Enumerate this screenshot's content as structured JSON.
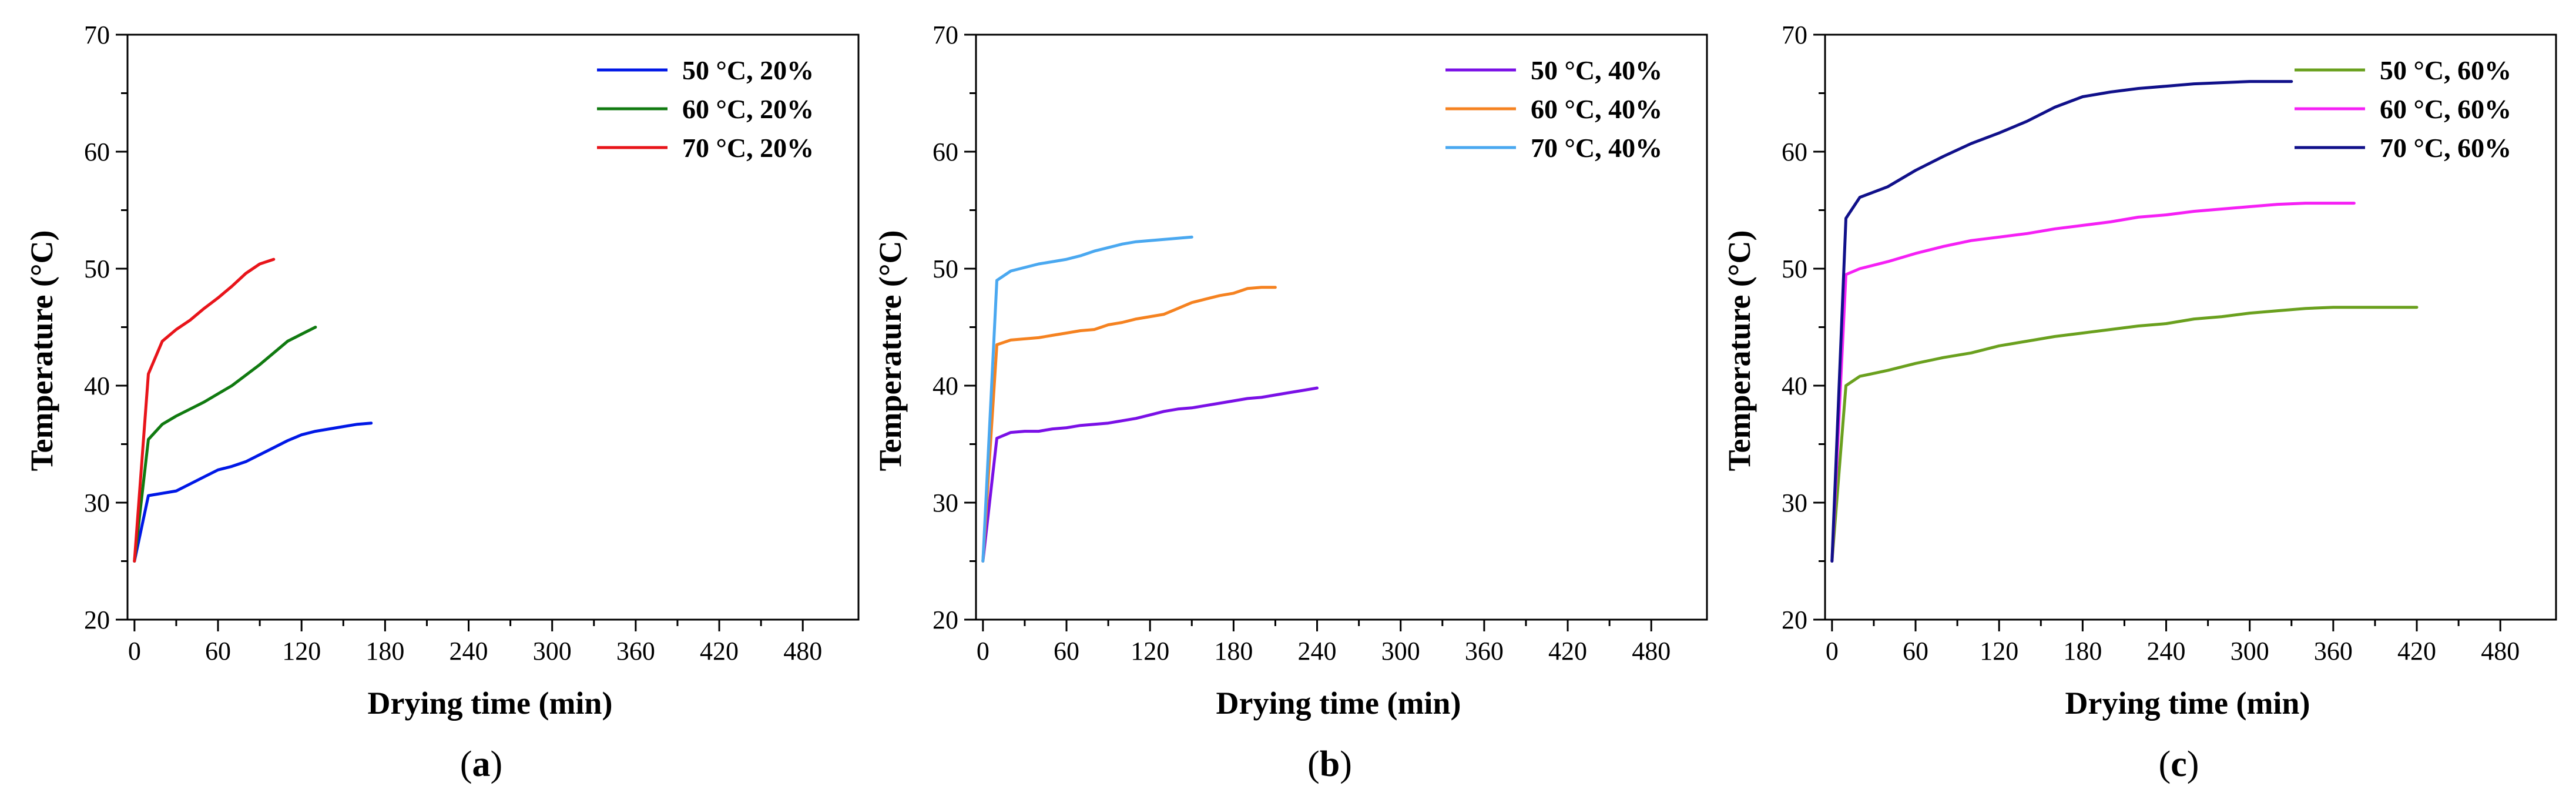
{
  "chart_data": [
    {
      "type": "line",
      "panel_label": "a",
      "xlabel": "Drying time (min)",
      "ylabel": "Temperature (°C)",
      "xlim": [
        -5,
        520
      ],
      "ylim": [
        20,
        70
      ],
      "xticks": [
        0,
        60,
        120,
        180,
        240,
        300,
        360,
        420,
        480
      ],
      "yticks": [
        20,
        30,
        40,
        50,
        60,
        70
      ],
      "legend_position": "top-right",
      "series": [
        {
          "name": "50 °C, 20%",
          "color": "#0018e6",
          "x": [
            0,
            10,
            20,
            30,
            40,
            50,
            60,
            70,
            80,
            90,
            100,
            110,
            120,
            130,
            140,
            150,
            160,
            170
          ],
          "y": [
            25.0,
            30.6,
            30.8,
            31.0,
            31.6,
            32.2,
            32.8,
            33.1,
            33.5,
            34.1,
            34.7,
            35.3,
            35.8,
            36.1,
            36.3,
            36.5,
            36.7,
            36.8
          ]
        },
        {
          "name": "60 °C, 20%",
          "color": "#107a10",
          "x": [
            0,
            10,
            20,
            30,
            40,
            50,
            60,
            70,
            80,
            90,
            100,
            110,
            120,
            130
          ],
          "y": [
            25.0,
            35.4,
            36.7,
            37.4,
            38.0,
            38.6,
            39.3,
            40.0,
            40.9,
            41.8,
            42.8,
            43.8,
            44.4,
            45.0
          ]
        },
        {
          "name": "70 °C, 20%",
          "color": "#e8141a",
          "x": [
            0,
            10,
            20,
            30,
            40,
            50,
            60,
            70,
            80,
            90,
            100
          ],
          "y": [
            25.0,
            41.0,
            43.8,
            44.8,
            45.6,
            46.6,
            47.5,
            48.5,
            49.6,
            50.4,
            50.8
          ]
        }
      ]
    },
    {
      "type": "line",
      "panel_label": "b",
      "xlabel": "Drying time (min)",
      "ylabel": "Temperature (°C)",
      "xlim": [
        -5,
        520
      ],
      "ylim": [
        20,
        70
      ],
      "xticks": [
        0,
        60,
        120,
        180,
        240,
        300,
        360,
        420,
        480
      ],
      "yticks": [
        20,
        30,
        40,
        50,
        60,
        70
      ],
      "legend_position": "top-right",
      "series": [
        {
          "name": "50 °C, 40%",
          "color": "#7a10e6",
          "x": [
            0,
            10,
            20,
            30,
            40,
            50,
            60,
            70,
            80,
            90,
            100,
            110,
            120,
            130,
            140,
            150,
            160,
            170,
            180,
            190,
            200,
            210,
            220,
            230,
            240
          ],
          "y": [
            25.0,
            35.5,
            36.0,
            36.1,
            36.1,
            36.3,
            36.4,
            36.6,
            36.7,
            36.8,
            37.0,
            37.2,
            37.5,
            37.8,
            38.0,
            38.1,
            38.3,
            38.5,
            38.7,
            38.9,
            39.0,
            39.2,
            39.4,
            39.6,
            39.8
          ]
        },
        {
          "name": "60 °C, 40%",
          "color": "#f58220",
          "x": [
            0,
            10,
            20,
            30,
            40,
            50,
            60,
            70,
            80,
            90,
            100,
            110,
            120,
            130,
            140,
            150,
            160,
            170,
            180,
            190,
            200,
            210
          ],
          "y": [
            25.0,
            43.5,
            43.9,
            44.0,
            44.1,
            44.3,
            44.5,
            44.7,
            44.8,
            45.2,
            45.4,
            45.7,
            45.9,
            46.1,
            46.6,
            47.1,
            47.4,
            47.7,
            47.9,
            48.3,
            48.4,
            48.4
          ]
        },
        {
          "name": "70 °C, 40%",
          "color": "#4aa8f0",
          "x": [
            0,
            10,
            20,
            30,
            40,
            50,
            60,
            70,
            80,
            90,
            100,
            110,
            120,
            130,
            140,
            150
          ],
          "y": [
            25.0,
            49.0,
            49.8,
            50.1,
            50.4,
            50.6,
            50.8,
            51.1,
            51.5,
            51.8,
            52.1,
            52.3,
            52.4,
            52.5,
            52.6,
            52.7
          ]
        }
      ]
    },
    {
      "type": "line",
      "panel_label": "c",
      "xlabel": "Drying time (min)",
      "ylabel": "Temperature (°C)",
      "xlim": [
        -5,
        520
      ],
      "ylim": [
        20,
        70
      ],
      "xticks": [
        0,
        60,
        120,
        180,
        240,
        300,
        360,
        420,
        480
      ],
      "yticks": [
        20,
        30,
        40,
        50,
        60,
        70
      ],
      "legend_position": "top-right",
      "series": [
        {
          "name": "50 °C, 60%",
          "color": "#6aa01e",
          "x": [
            0,
            10,
            20,
            40,
            60,
            80,
            100,
            120,
            140,
            160,
            180,
            200,
            220,
            240,
            260,
            280,
            300,
            320,
            340,
            360,
            380,
            400,
            420
          ],
          "y": [
            25.0,
            40.0,
            40.8,
            41.3,
            41.9,
            42.4,
            42.8,
            43.4,
            43.8,
            44.2,
            44.5,
            44.8,
            45.1,
            45.3,
            45.7,
            45.9,
            46.2,
            46.4,
            46.6,
            46.7,
            46.7,
            46.7,
            46.7
          ]
        },
        {
          "name": "60 °C, 60%",
          "color": "#f520f5",
          "x": [
            0,
            10,
            20,
            40,
            60,
            80,
            100,
            120,
            140,
            160,
            180,
            200,
            220,
            240,
            260,
            280,
            300,
            320,
            340,
            360,
            375
          ],
          "y": [
            25.0,
            49.5,
            50.0,
            50.6,
            51.3,
            51.9,
            52.4,
            52.7,
            53.0,
            53.4,
            53.7,
            54.0,
            54.4,
            54.6,
            54.9,
            55.1,
            55.3,
            55.5,
            55.6,
            55.6,
            55.6
          ]
        },
        {
          "name": "70 °C, 60%",
          "color": "#10108a",
          "x": [
            0,
            10,
            20,
            40,
            60,
            80,
            100,
            120,
            140,
            160,
            180,
            200,
            220,
            240,
            260,
            280,
            300,
            320,
            330
          ],
          "y": [
            25.0,
            54.3,
            56.1,
            57.0,
            58.4,
            59.6,
            60.7,
            61.6,
            62.6,
            63.8,
            64.7,
            65.1,
            65.4,
            65.6,
            65.8,
            65.9,
            66.0,
            66.0,
            66.0
          ]
        }
      ]
    }
  ]
}
